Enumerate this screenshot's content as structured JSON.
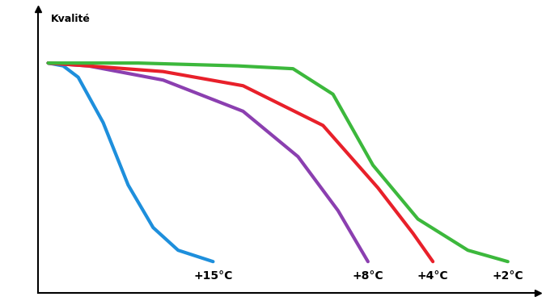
{
  "chart_data": {
    "type": "line",
    "y_label": "Kvalité",
    "xlim": [
      0,
      100
    ],
    "ylim": [
      0,
      100
    ],
    "xticks": [],
    "yticks": [],
    "tick_labels": false,
    "grid": false,
    "series": [
      {
        "name": "+15°C",
        "color": "#1e8fdc",
        "x": [
          2,
          5,
          8,
          13,
          18,
          23,
          28,
          35
        ],
        "values": [
          81,
          80,
          76,
          60,
          38,
          23,
          15,
          11
        ]
      },
      {
        "name": "+8°C",
        "color": "#8b3fb0",
        "x": [
          2,
          10,
          25,
          41,
          52,
          60,
          66
        ],
        "values": [
          81,
          80,
          75,
          64,
          48,
          29,
          11
        ]
      },
      {
        "name": "+4°C",
        "color": "#e8202a",
        "x": [
          2,
          10,
          25,
          41,
          57,
          68,
          75,
          79
        ],
        "values": [
          81,
          80,
          78,
          73,
          59,
          37,
          21,
          11
        ]
      },
      {
        "name": "+2°C",
        "color": "#3cb83c",
        "x": [
          2,
          20,
          40,
          51,
          59,
          67,
          76,
          86,
          94
        ],
        "values": [
          81,
          81,
          80,
          79,
          70,
          45,
          26,
          15,
          11
        ]
      }
    ]
  }
}
